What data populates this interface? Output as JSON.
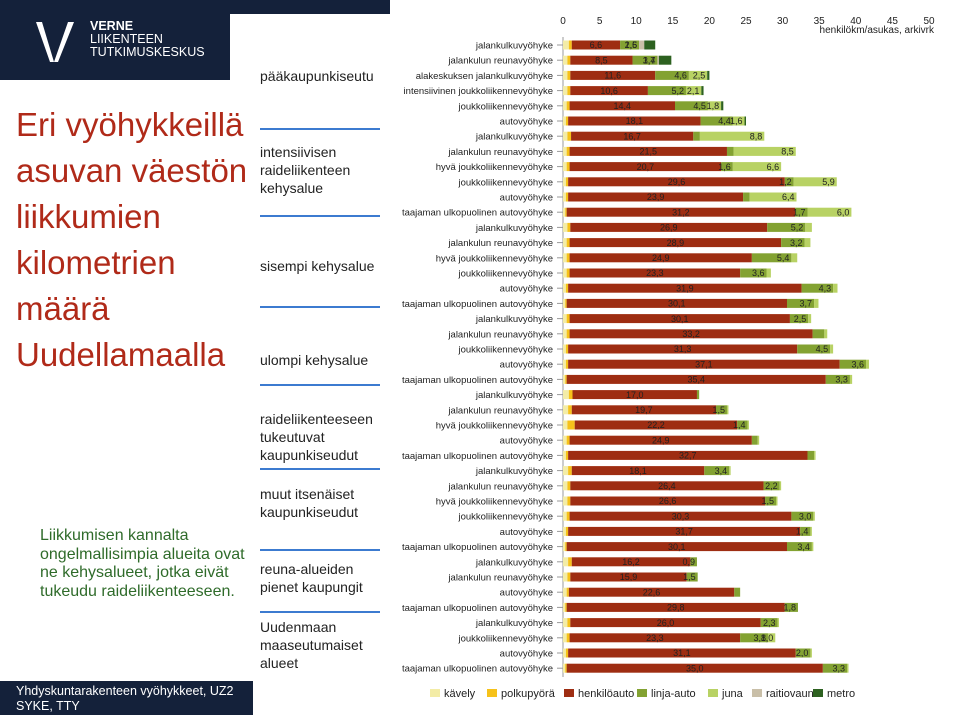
{
  "header": {
    "logo_line1": "VERNE",
    "logo_line2": "LIIKENTEEN",
    "logo_line3": "TUTKIMUSKESKUS",
    "title": "Eri vyöhykkeillä asuvan väestön liikkumien kilometrien määrä Uudellamaalla",
    "note": "Liikkumisen kannalta ongelmallisimpia alueita ovat ne kehysalueet, jotka eivät tukeudu raideliikenteeseen.",
    "footer_line1": "Yhdyskuntarakenteen vyöhykkeet, UZ2",
    "footer_line2": "SYKE, TTY"
  },
  "regions": [
    "pääkaupunkiseutu",
    "intensiivisen raideliikenteen kehysalue",
    "sisempi kehysalue",
    "ulompi kehysalue",
    "raideliikenteeseen tukeutuvat kaupunkiseudut",
    "muut itsenäiset kaupunkiseudut",
    "reuna-alueiden pienet kaupungit",
    "Uudenmaan maaseutumaiset alueet"
  ],
  "chart_data": {
    "type": "bar",
    "orientation": "horizontal",
    "stacked": true,
    "xlabel": "henkilökm/asukas, arkivrk",
    "xlim": [
      0,
      50
    ],
    "xticks": [
      0,
      5,
      10,
      15,
      20,
      25,
      30,
      35,
      40,
      45,
      50
    ],
    "legend_position": "bottom",
    "series": [
      {
        "name": "kävely",
        "color": "#f3eca6"
      },
      {
        "name": "polkupyörä",
        "color": "#f6c21a"
      },
      {
        "name": "henkilöauto",
        "color": "#9e2d12"
      },
      {
        "name": "linja-auto",
        "color": "#83a232"
      },
      {
        "name": "juna",
        "color": "#b8d264"
      },
      {
        "name": "raitiovaunu",
        "color": "#c9bfa8"
      },
      {
        "name": "metro",
        "color": "#2d6120"
      }
    ],
    "rows": [
      {
        "label": "jalankulkuvyöhyke",
        "values": [
          0.8,
          0.4,
          6.6,
          2.6,
          0,
          0.7,
          1.5
        ],
        "labels": [
          "6,6",
          "2,6",
          "1,5"
        ]
      },
      {
        "label": "jalankulun reunavyöhyke",
        "values": [
          0.6,
          0.4,
          8.5,
          3.4,
          0,
          0.2,
          1.7
        ],
        "labels": [
          "8,5",
          "3,4",
          "1,7"
        ]
      },
      {
        "label": "alakeskuksen jalankulkuvyöhyke",
        "values": [
          0.6,
          0.4,
          11.6,
          4.6,
          2.5,
          0,
          0.3
        ],
        "labels": [
          "11,6",
          "4,6",
          "2,5"
        ]
      },
      {
        "label": "intensiivinen joukkoliikennevyöhyke",
        "values": [
          0.6,
          0.4,
          10.6,
          5.2,
          2.1,
          0,
          0.3
        ],
        "labels": [
          "10,6",
          "5,2",
          "2,1"
        ]
      },
      {
        "label": "joukkoliikennevyöhyke",
        "values": [
          0.5,
          0.4,
          14.4,
          4.5,
          1.8,
          0,
          0.3
        ],
        "labels": [
          "14,4",
          "4,5",
          "1,8"
        ]
      },
      {
        "label": "autovyöhyke",
        "values": [
          0.4,
          0.3,
          18.1,
          4.4,
          1.6,
          0,
          0.2
        ],
        "labels": [
          "18,1",
          "4,4",
          "1,6"
        ]
      },
      {
        "label": "jalankulkuvyöhyke",
        "values": [
          0.6,
          0.5,
          16.7,
          0.9,
          8.8,
          0,
          0
        ],
        "labels": [
          "16,7",
          "",
          "8,8"
        ]
      },
      {
        "label": "jalankulun reunavyöhyke",
        "values": [
          0.5,
          0.4,
          21.5,
          0.9,
          8.5,
          0,
          0
        ],
        "labels": [
          "21,5",
          "",
          "8,5"
        ]
      },
      {
        "label": "hyvä joukkoliikennevyöhyke",
        "values": [
          0.5,
          0.4,
          20.7,
          1.6,
          6.6,
          0,
          0
        ],
        "labels": [
          "20,7",
          "1,6",
          "6,6"
        ]
      },
      {
        "label": "joukkoliikennevyöhyke",
        "values": [
          0.4,
          0.3,
          29.6,
          1.2,
          5.9,
          0,
          0
        ],
        "labels": [
          "29,6",
          "1,2",
          "5,9"
        ]
      },
      {
        "label": "autovyöhyke",
        "values": [
          0.4,
          0.3,
          23.9,
          0.9,
          6.4,
          0,
          0
        ],
        "labels": [
          "23,9",
          "",
          "6,4"
        ]
      },
      {
        "label": "taajaman ulkopuolinen autovyöhyke",
        "values": [
          0.3,
          0.2,
          31.2,
          1.7,
          6.0,
          0,
          0
        ],
        "labels": [
          "31,2",
          "1,7",
          "6,0"
        ]
      },
      {
        "label": "jalankulkuvyöhyke",
        "values": [
          0.6,
          0.4,
          26.9,
          5.2,
          0.9,
          0,
          0
        ],
        "labels": [
          "26,9",
          "5,2",
          ""
        ]
      },
      {
        "label": "jalankulun reunavyöhyke",
        "values": [
          0.5,
          0.4,
          28.9,
          3.2,
          0.8,
          0,
          0
        ],
        "labels": [
          "28,9",
          "3,2",
          ""
        ]
      },
      {
        "label": "hyvä joukkoliikennevyöhyke",
        "values": [
          0.5,
          0.4,
          24.9,
          5.4,
          0.8,
          0,
          0
        ],
        "labels": [
          "24,9",
          "5,4",
          ""
        ]
      },
      {
        "label": "joukkoliikennevyöhyke",
        "values": [
          0.5,
          0.4,
          23.3,
          3.6,
          0.6,
          0,
          0
        ],
        "labels": [
          "23,3",
          "3,6",
          ""
        ]
      },
      {
        "label": "autovyöhyke",
        "values": [
          0.4,
          0.3,
          31.9,
          4.3,
          0.6,
          0,
          0
        ],
        "labels": [
          "31,9",
          "4,3",
          ""
        ]
      },
      {
        "label": "taajaman ulkopuolinen autovyöhyke",
        "values": [
          0.3,
          0.2,
          30.1,
          3.7,
          0.6,
          0,
          0
        ],
        "labels": [
          "30,1",
          "3,7",
          ""
        ]
      },
      {
        "label": "jalankulkuvyöhyke",
        "values": [
          0.5,
          0.4,
          30.1,
          2.5,
          0.4,
          0,
          0
        ],
        "labels": [
          "30,1",
          "2,5",
          ""
        ]
      },
      {
        "label": "jalankulun reunavyöhyke",
        "values": [
          0.5,
          0.4,
          33.2,
          1.6,
          0.4,
          0,
          0
        ],
        "labels": [
          "33,2",
          "",
          ""
        ]
      },
      {
        "label": "joukkoliikennevyöhyke",
        "values": [
          0.4,
          0.3,
          31.3,
          4.5,
          0.4,
          0,
          0
        ],
        "labels": [
          "31,3",
          "4,5",
          ""
        ]
      },
      {
        "label": "autovyöhyke",
        "values": [
          0.4,
          0.3,
          37.1,
          3.6,
          0.4,
          0,
          0
        ],
        "labels": [
          "37,1",
          "3,6",
          ""
        ]
      },
      {
        "label": "taajaman ulkopuolinen autovyöhyke",
        "values": [
          0.3,
          0.2,
          35.4,
          3.3,
          0.3,
          0,
          0
        ],
        "labels": [
          "35,4",
          "3,3",
          ""
        ]
      },
      {
        "label": "jalankulkuvyöhyke",
        "values": [
          0.8,
          0.5,
          17.0,
          0.3,
          0,
          0,
          0
        ],
        "labels": [
          "17,0",
          "",
          ""
        ]
      },
      {
        "label": "jalankulun reunavyöhyke",
        "values": [
          0.7,
          0.5,
          19.7,
          1.5,
          0.2,
          0,
          0
        ],
        "labels": [
          "19,7",
          "1,5",
          ""
        ]
      },
      {
        "label": "hyvä joukkoliikennevyöhyke",
        "values": [
          0.6,
          1.0,
          22.2,
          1.4,
          0.2,
          0,
          0
        ],
        "labels": [
          "22,2",
          "1,4",
          ""
        ]
      },
      {
        "label": "autovyöhyke",
        "values": [
          0.5,
          0.4,
          24.9,
          0.8,
          0.2,
          0,
          0
        ],
        "labels": [
          "24,9",
          "",
          ""
        ]
      },
      {
        "label": "taajaman ulkopuolinen autovyöhyke",
        "values": [
          0.4,
          0.3,
          32.7,
          0.9,
          0.2,
          0,
          0
        ],
        "labels": [
          "32,7",
          "",
          ""
        ]
      },
      {
        "label": "jalankulkuvyöhyke",
        "values": [
          0.7,
          0.5,
          18.1,
          3.4,
          0.2,
          0,
          0
        ],
        "labels": [
          "18,1",
          "3,4",
          ""
        ]
      },
      {
        "label": "jalankulun reunavyöhyke",
        "values": [
          0.6,
          0.4,
          26.4,
          2.2,
          0.2,
          0,
          0
        ],
        "labels": [
          "26,4",
          "2,2",
          ""
        ]
      },
      {
        "label": "hyvä joukkoliikennevyöhyke",
        "values": [
          0.6,
          0.4,
          26.6,
          1.5,
          0.2,
          0,
          0
        ],
        "labels": [
          "26,6",
          "1,5",
          ""
        ]
      },
      {
        "label": "joukkoliikennevyöhyke",
        "values": [
          0.5,
          0.4,
          30.3,
          3.0,
          0.2,
          0,
          0
        ],
        "labels": [
          "30,3",
          "3,0",
          ""
        ]
      },
      {
        "label": "autovyöhyke",
        "values": [
          0.4,
          0.3,
          31.7,
          1.4,
          0.2,
          0,
          0
        ],
        "labels": [
          "31,7",
          "1,4",
          ""
        ]
      },
      {
        "label": "taajaman ulkopuolinen autovyöhyke",
        "values": [
          0.3,
          0.2,
          30.1,
          3.4,
          0.2,
          0,
          0
        ],
        "labels": [
          "30,1",
          "3,4",
          ""
        ]
      },
      {
        "label": "jalankulkuvyöhyke",
        "values": [
          0.7,
          0.5,
          16.2,
          0.9,
          0,
          0,
          0
        ],
        "labels": [
          "16,2",
          "0,9",
          ""
        ]
      },
      {
        "label": "jalankulun reunavyöhyke",
        "values": [
          0.6,
          0.4,
          15.9,
          1.5,
          0,
          0,
          0
        ],
        "labels": [
          "15,9",
          "1,5",
          ""
        ]
      },
      {
        "label": "autovyöhyke",
        "values": [
          0.5,
          0.3,
          22.6,
          0.8,
          0,
          0,
          0
        ],
        "labels": [
          "22,6",
          "",
          ""
        ]
      },
      {
        "label": "taajaman ulkopuolinen autovyöhyke",
        "values": [
          0.3,
          0.2,
          29.8,
          1.8,
          0,
          0,
          0
        ],
        "labels": [
          "29,8",
          "1,8",
          ""
        ]
      },
      {
        "label": "jalankulkuvyöhyke",
        "values": [
          0.6,
          0.4,
          26.0,
          2.3,
          0.2,
          0,
          0
        ],
        "labels": [
          "26,0",
          "2,3",
          ""
        ]
      },
      {
        "label": "joukkoliikennevyöhyke",
        "values": [
          0.5,
          0.4,
          23.3,
          3.8,
          1.0,
          0,
          0
        ],
        "labels": [
          "23,3",
          "3,8",
          "1,0"
        ]
      },
      {
        "label": "autovyöhyke",
        "values": [
          0.4,
          0.3,
          31.1,
          2.0,
          0.2,
          0,
          0
        ],
        "labels": [
          "31,1",
          "2,0",
          ""
        ]
      },
      {
        "label": "taajaman ulkopuolinen autovyöhyke",
        "values": [
          0.3,
          0.2,
          35.0,
          3.3,
          0.2,
          0,
          0
        ],
        "labels": [
          "35,0",
          "3,3",
          ""
        ]
      }
    ]
  }
}
